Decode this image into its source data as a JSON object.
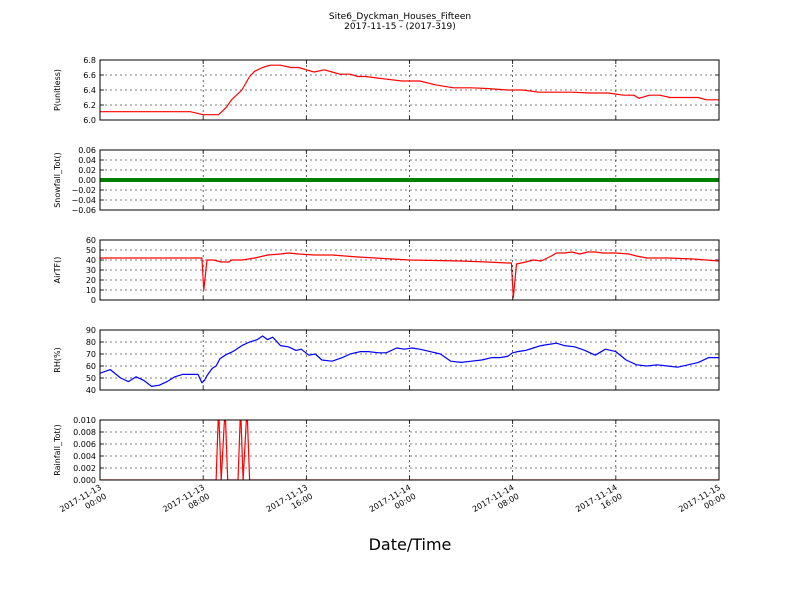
{
  "title": "Site6_Dyckman_Houses_Fifteen",
  "subtitle": "2017-11-15 - (2017-319)",
  "xlabel": "Date/Time",
  "chart_data": {
    "type": "line",
    "x_range": [
      "2017-11-13 00:00",
      "2017-11-15 00:00"
    ],
    "x_ticks": [
      {
        "l1": "2017-11-13",
        "l2": "00:00"
      },
      {
        "l1": "2017-11-13",
        "l2": "08:00"
      },
      {
        "l1": "2017-11-13",
        "l2": "16:00"
      },
      {
        "l1": "2017-11-14",
        "l2": "00:00"
      },
      {
        "l1": "2017-11-14",
        "l2": "08:00"
      },
      {
        "l1": "2017-11-14",
        "l2": "16:00"
      },
      {
        "l1": "2017-11-15",
        "l2": "00:00"
      }
    ],
    "grid": true,
    "panels": [
      {
        "ylabel": "P(unitless)",
        "ylim": [
          6.0,
          6.8
        ],
        "yticks": [
          6.0,
          6.2,
          6.4,
          6.6,
          6.8
        ],
        "ytick_labels": [
          "6.0",
          "6.2",
          "6.4",
          "6.6",
          "6.8"
        ],
        "color": "#ff0000",
        "series": [
          {
            "x": [
              0,
              2,
              5,
              7,
              8,
              9.2,
              9.8,
              10.2,
              11,
              11.6,
              12,
              12.6,
              13.2,
              14,
              14.8,
              15.4,
              16,
              16.6,
              17.4,
              18,
              18.6,
              19.4,
              20,
              20.6,
              22,
              23.4,
              24.8,
              26,
              27.4,
              28.8,
              30,
              31.6,
              32.8,
              34,
              35,
              36.6,
              38,
              39.4,
              40.6,
              41.4,
              41.8,
              42.6,
              43.4,
              44.2,
              45.2,
              46.4,
              47,
              48
            ],
            "y": [
              6.11,
              6.11,
              6.11,
              6.11,
              6.07,
              6.07,
              6.17,
              6.27,
              6.4,
              6.58,
              6.65,
              6.7,
              6.73,
              6.73,
              6.7,
              6.7,
              6.67,
              6.64,
              6.67,
              6.64,
              6.61,
              6.61,
              6.58,
              6.58,
              6.55,
              6.52,
              6.52,
              6.47,
              6.43,
              6.43,
              6.42,
              6.4,
              6.4,
              6.37,
              6.37,
              6.37,
              6.36,
              6.36,
              6.33,
              6.33,
              6.29,
              6.33,
              6.33,
              6.3,
              6.3,
              6.3,
              6.27,
              6.27
            ]
          }
        ]
      },
      {
        "ylabel": "Snowfall_Tot()",
        "ylim": [
          -0.06,
          0.06
        ],
        "yticks": [
          -0.06,
          -0.04,
          -0.02,
          0.0,
          0.02,
          0.04,
          0.06
        ],
        "ytick_labels": [
          "−0.06",
          "−0.04",
          "−0.02",
          "0.00",
          "0.02",
          "0.04",
          "0.06"
        ],
        "color": "#008000",
        "series": [
          {
            "x": [
              0,
              48
            ],
            "y": [
              0.0,
              0.0
            ]
          }
        ]
      },
      {
        "ylabel": "AirTF()",
        "ylim": [
          0,
          60
        ],
        "yticks": [
          0,
          10,
          20,
          30,
          40,
          50,
          60
        ],
        "ytick_labels": [
          "0",
          "10",
          "20",
          "30",
          "40",
          "50",
          "60"
        ],
        "color": "#ff0000",
        "series": [
          {
            "x": [
              0,
              3,
              6,
              7.6,
              7.9,
              8.05,
              8.3,
              8.8,
              9.4,
              10,
              10.2,
              11,
              12,
              13,
              14,
              14.6,
              15.4,
              16.6,
              18,
              20,
              24,
              28,
              30,
              31.6,
              31.9,
              32.05,
              32.3,
              33,
              33.6,
              34.2,
              35,
              35.4,
              36,
              36.6,
              37.2,
              37.8,
              38.4,
              39,
              40,
              41,
              41.6,
              42.4,
              44,
              46,
              48
            ],
            "y": [
              42,
              42,
              42,
              42,
              42,
              10,
              40,
              40,
              38,
              38,
              40,
              40,
              42,
              45,
              46,
              47,
              46,
              45,
              45,
              43,
              40,
              39,
              38,
              37,
              37,
              2,
              36,
              38,
              40,
              39,
              44,
              47,
              47,
              48,
              46,
              48,
              48,
              47,
              47,
              46,
              44,
              42,
              42,
              41,
              39
            ]
          }
        ]
      },
      {
        "ylabel": "RH(%)",
        "ylim": [
          40,
          90
        ],
        "yticks": [
          40,
          50,
          60,
          70,
          80,
          90
        ],
        "ytick_labels": [
          "40",
          "50",
          "60",
          "70",
          "80",
          "90"
        ],
        "color": "#0000ff",
        "series": [
          {
            "x": [
              0,
              0.8,
              1.6,
              2.2,
              2.8,
              3.4,
              4.0,
              4.6,
              5.2,
              5.8,
              6.4,
              7.0,
              7.6,
              7.9,
              8.1,
              8.3,
              8.7,
              9.0,
              9.3,
              9.7,
              10.3,
              11.0,
              11.6,
              12.2,
              12.6,
              13.0,
              13.4,
              14.0,
              14.6,
              15.2,
              15.6,
              16.2,
              16.7,
              17.2,
              18.0,
              18.8,
              19.4,
              20.2,
              20.8,
              21.6,
              22.2,
              23.0,
              23.6,
              24.2,
              24.8,
              25.6,
              26.4,
              27.2,
              28.0,
              28.8,
              29.6,
              30.4,
              31.0,
              31.6,
              32.0,
              32.4,
              33.0,
              33.6,
              34.2,
              34.8,
              35.4,
              36.0,
              36.8,
              37.6,
              38.4,
              39.2,
              40.0,
              40.8,
              41.6,
              42.4,
              43.2,
              44.0,
              44.8,
              45.6,
              46.4,
              47.2,
              48.0
            ],
            "y": [
              54,
              57,
              50,
              47,
              51,
              48,
              43,
              44,
              47,
              51,
              53,
              53,
              53,
              46,
              48,
              52,
              58,
              60,
              66,
              69,
              72,
              77,
              80,
              82,
              85,
              82,
              84,
              77,
              76,
              73,
              74,
              69,
              70,
              65,
              64,
              67,
              70,
              72,
              72,
              71,
              71,
              75,
              74,
              75,
              74,
              72,
              70,
              64,
              63,
              64,
              65,
              67,
              67,
              68,
              71,
              72,
              73,
              75,
              77,
              78,
              79,
              77,
              76,
              73,
              69,
              74,
              72,
              65,
              61,
              60,
              61,
              60,
              59,
              61,
              63,
              67,
              67
            ]
          }
        ]
      },
      {
        "ylabel": "Rainfall_Tot()",
        "ylim": [
          0.0,
          0.01
        ],
        "yticks": [
          0.0,
          0.002,
          0.004,
          0.006,
          0.008,
          0.01
        ],
        "ytick_labels": [
          "0.000",
          "0.002",
          "0.004",
          "0.006",
          "0.008",
          "0.010"
        ],
        "color": "#ff0000",
        "series": [
          {
            "x": [
              0,
              9.0,
              9.2,
              9.4,
              9.7,
              9.9,
              10.7,
              10.9,
              11.1,
              11.4,
              11.6,
              11.8,
              48
            ],
            "y": [
              0,
              0,
              0.012,
              0,
              0.012,
              0,
              0,
              0.012,
              0,
              0.012,
              0,
              0,
              0
            ]
          }
        ]
      }
    ]
  }
}
